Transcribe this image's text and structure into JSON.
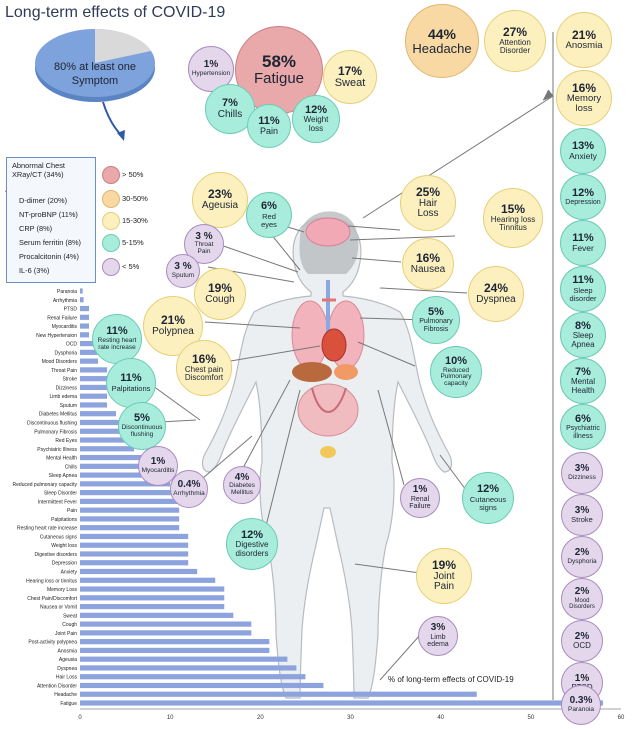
{
  "title": "Long-term effects of COVID-19",
  "summary": "80% at least one Symptom",
  "markers": {
    "header": "Abnormal Chest XRay/CT (34%)",
    "items": [
      "D-dimer (20%)",
      "NT-proBNP (11%)",
      "CRP (8%)",
      "Serum ferritin (8%)",
      "Procalcitonin (4%)",
      "IL-6 (3%)"
    ]
  },
  "legend": [
    {
      "label": "> 50%",
      "color": "#e9a8aa"
    },
    {
      "label": "30-50%",
      "color": "#f8d9a4"
    },
    {
      "label": "15-30%",
      "color": "#fcf0bf"
    },
    {
      "label": "5-15%",
      "color": "#a8ecdb"
    },
    {
      "label": "< 5%",
      "color": "#e4d7ec"
    }
  ],
  "bubbles": {
    "fatigue": {
      "pct": "58%",
      "label": "Fatigue"
    },
    "hypertension": {
      "pct": "1%",
      "label": "Hypertension"
    },
    "sweat": {
      "pct": "17%",
      "label": "Sweat"
    },
    "chills": {
      "pct": "7%",
      "label": "Chills"
    },
    "pain": {
      "pct": "11%",
      "label": "Pain"
    },
    "weight_loss": {
      "pct": "12%",
      "label": "Weight loss"
    },
    "headache": {
      "pct": "44%",
      "label": "Headache"
    },
    "attention_disorder": {
      "pct": "27%",
      "label": "Attention Disorder"
    },
    "anosmia": {
      "pct": "21%",
      "label": "Anosmia"
    },
    "memory_loss": {
      "pct": "16%",
      "label": "Memory loss"
    },
    "anxiety": {
      "pct": "13%",
      "label": "Anxiety"
    },
    "depression": {
      "pct": "12%",
      "label": "Depression"
    },
    "fever": {
      "pct": "11%",
      "label": "Fever"
    },
    "sleep_disorder": {
      "pct": "11%",
      "label": "Sleep disorder"
    },
    "sleep_apnea": {
      "pct": "8%",
      "label": "Sleep Apnea"
    },
    "mental_health": {
      "pct": "7%",
      "label": "Mental Health"
    },
    "psychiatric_illness": {
      "pct": "6%",
      "label": "Psychiatric illness"
    },
    "dizziness": {
      "pct": "3%",
      "label": "Dizziness"
    },
    "stroke": {
      "pct": "3%",
      "label": "Stroke"
    },
    "dysphoria": {
      "pct": "2%",
      "label": "Dysphoria"
    },
    "mood_disorders": {
      "pct": "2%",
      "label": "Mood Disorders"
    },
    "ocd": {
      "pct": "2%",
      "label": "OCD"
    },
    "ptsd": {
      "pct": "1%",
      "label": "PTSD"
    },
    "paranoia": {
      "pct": "0.3%",
      "label": "Paranoia"
    },
    "ageusia": {
      "pct": "23%",
      "label": "Ageusia"
    },
    "red_eyes": {
      "pct": "6%",
      "label": "Red eyes"
    },
    "throat_pain": {
      "pct": "3 %",
      "label": "Throat Pain"
    },
    "sputum": {
      "pct": "3 %",
      "label": "Sputum"
    },
    "cough": {
      "pct": "19%",
      "label": "Cough"
    },
    "hair_loss": {
      "pct": "25%",
      "label": "Hair Loss"
    },
    "hearing_loss": {
      "pct": "15%",
      "label": "Hearing loss Tinnitus"
    },
    "nausea": {
      "pct": "16%",
      "label": "Nausea"
    },
    "dyspnea": {
      "pct": "24%",
      "label": "Dyspnea"
    },
    "polypnea": {
      "pct": "21%",
      "label": "Polypnea"
    },
    "resting_heart_rate": {
      "pct": "11%",
      "label": "Resting heart rate increase"
    },
    "palpitations": {
      "pct": "11%",
      "label": "Palpitations"
    },
    "chest_pain": {
      "pct": "16%",
      "label": "Chest pain Discomfort"
    },
    "discontinuous_flushing": {
      "pct": "5%",
      "label": "Discontinuous flushing"
    },
    "myocarditis": {
      "pct": "1%",
      "label": "Myocarditis"
    },
    "arrhythmia": {
      "pct": "0.4%",
      "label": "Arrhythmia"
    },
    "diabetes_mellitus": {
      "pct": "4%",
      "label": "Diabetes Mellitus"
    },
    "pulmonary_fibrosis": {
      "pct": "5%",
      "label": "Pulmonary Fibrosis"
    },
    "reduced_pulmonary_capacity": {
      "pct": "10%",
      "label": "Reduced Pulmonary capacity"
    },
    "renal_failure": {
      "pct": "1%",
      "label": "Renal Failure"
    },
    "cutaneous_signs": {
      "pct": "12%",
      "label": "Cutaneous signs"
    },
    "digestive_disorders": {
      "pct": "12%",
      "label": "Digestive disorders"
    },
    "joint_pain": {
      "pct": "19%",
      "label": "Joint Pain"
    },
    "limb_edema": {
      "pct": "3%",
      "label": "Limb edema"
    }
  },
  "chart_data": {
    "type": "bar",
    "orientation": "horizontal",
    "xlabel": "% of long-term effects of COVID-19",
    "xlim": [
      0,
      60
    ],
    "xticks": [
      0,
      10,
      20,
      30,
      40,
      50,
      60
    ],
    "bar_color": "#8da3de",
    "categories": [
      "Paranoia",
      "Arrhythmia",
      "PTSD",
      "Renal Failure",
      "Myocarditis",
      "New Hypertension",
      "OCD",
      "Dysphoria",
      "Mood Disorders",
      "Throat Pain",
      "Stroke",
      "Dizziness",
      "Limb edema",
      "Sputum",
      "Diabetes Mellitus",
      "Discontinuous flushing",
      "Pulmonary Fibrosis",
      "Red Eyes",
      "Psychiatric Illness",
      "Mental Health",
      "Chills",
      "Sleep Apnea",
      "Reduced pulmonary capacity",
      "Sleep Disorder",
      "Intermittent Fever",
      "Pain",
      "Palpitations",
      "Resting heart rate increase",
      "Cutaneous signs",
      "Weight loss",
      "Digestive disorders",
      "Depression",
      "Anxiety",
      "Hearing loss or tinnitus",
      "Memory Loss",
      "Chest Pain/Discomfort",
      "Nausea or Vomit",
      "Sweat",
      "Cough",
      "Joint Pain",
      "Post-activity polypnea",
      "Anosmia",
      "Ageusia",
      "Dyspnea",
      "Hair Loss",
      "Attention Disorder",
      "Headache",
      "Fatigue"
    ],
    "values": [
      0.3,
      0.4,
      1,
      1,
      1,
      1,
      2,
      2,
      2,
      3,
      3,
      3,
      3,
      3,
      4,
      5,
      5,
      6,
      6,
      7,
      7,
      8,
      10,
      11,
      11,
      11,
      11,
      11,
      12,
      12,
      12,
      12,
      13,
      15,
      16,
      16,
      16,
      17,
      19,
      19,
      21,
      21,
      23,
      24,
      25,
      27,
      44,
      58
    ]
  }
}
